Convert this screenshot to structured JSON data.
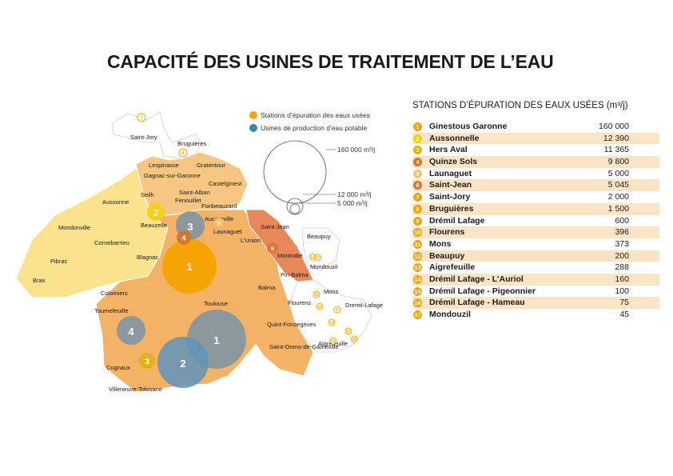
{
  "title": "CAPACITÉ DES USINES DE TRAITEMENT DE L’EAU",
  "legend": {
    "wastewater": "Stations d’épuration des eaux usées",
    "drinking": "Usines de production d’eau potable",
    "sizes": [
      "160 000 m³/j",
      "12 000 m³/j",
      "5 000 m³/j"
    ]
  },
  "colors": {
    "wastewater": "#f5a300",
    "drinking": "#7f96a3",
    "table_shade": "#fbe3c6",
    "zone_light": "#fbe38e",
    "zone_mid": "#f7c682",
    "zone_main": "#f4b266",
    "zone_red": "#e8875a"
  },
  "table": {
    "title": "STATIONS D’ÉPURATION DES EAUX USÉES (m³/j)",
    "rows": [
      {
        "n": "1",
        "name": "Ginestous Garonne",
        "value": "160 000"
      },
      {
        "n": "2",
        "name": "Aussonnelle",
        "value": "12 390"
      },
      {
        "n": "3",
        "name": "Hers Aval",
        "value": "11 365"
      },
      {
        "n": "4",
        "name": "Quinze Sols",
        "value": "9 800"
      },
      {
        "n": "5",
        "name": "Launaguet",
        "value": "5 000"
      },
      {
        "n": "6",
        "name": "Saint-Jean",
        "value": "5 045"
      },
      {
        "n": "7",
        "name": "Saint-Jory",
        "value": "2 000"
      },
      {
        "n": "8",
        "name": "Bruguières",
        "value": "1 500"
      },
      {
        "n": "9",
        "name": "Drémil Lafage",
        "value": "600"
      },
      {
        "n": "10",
        "name": "Flourens",
        "value": "396"
      },
      {
        "n": "11",
        "name": "Mons",
        "value": "373"
      },
      {
        "n": "12",
        "name": "Beaupuy",
        "value": "200"
      },
      {
        "n": "13",
        "name": "Aigrefeuille",
        "value": "288"
      },
      {
        "n": "14",
        "name": "Drémil Lafage - L’Auriol",
        "value": "160"
      },
      {
        "n": "15",
        "name": "Drémil Lafage - Pigeonnier",
        "value": "100"
      },
      {
        "n": "16",
        "name": "Drémil Lafage - Hameau",
        "value": "75"
      },
      {
        "n": "17",
        "name": "Mondouzil",
        "value": "45"
      }
    ]
  },
  "communes": [
    "Saint-Jory",
    "Bruguières",
    "Lespinasse",
    "Gratentour",
    "Gagnac-sur-Garonne",
    "Castelginest",
    "Saint-Alban",
    "Seilh",
    "Fenouillet",
    "Fonbeauzard",
    "Aussonne",
    "Aucamville",
    "Beauzelle",
    "Launaguet",
    "Saint-Jean",
    "Mondonville",
    "Beaupuy",
    "Cornebarrieu",
    "L’Union",
    "Montrabé",
    "Mondouzil",
    "Blagnac",
    "Pibrac",
    "Pin-Balma",
    "Brax",
    "Balma",
    "Mons",
    "Colomiers",
    "Toulouse",
    "Flourens",
    "Dremil-Lafage",
    "Tournefeuille",
    "Quint-Fonsegrives",
    "Aigrefeuille",
    "Saint-Orens-de-Gameville",
    "Cugnaux",
    "Villeneuve-Tolosane"
  ],
  "drinking_plants": [
    "1",
    "2",
    "3",
    "4"
  ],
  "wastewater_map_markers": [
    "1",
    "2",
    "3",
    "4",
    "5",
    "6",
    "7",
    "8",
    "9",
    "10",
    "11",
    "12",
    "13",
    "14",
    "15",
    "16",
    "17"
  ]
}
